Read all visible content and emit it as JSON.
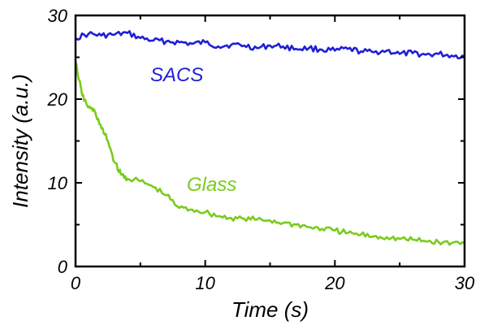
{
  "chart_data": {
    "type": "line",
    "title": "",
    "xlabel": "Time (s)",
    "ylabel": "Intensity (a.u.)",
    "xlim": [
      0,
      30
    ],
    "ylim": [
      0,
      30
    ],
    "xticks": [
      "0",
      "10",
      "20",
      "30"
    ],
    "yticks": [
      "0",
      "10",
      "20",
      "30"
    ],
    "grid": false,
    "series": [
      {
        "name": "SACS",
        "color": "#1f1fd6",
        "x": [
          0,
          1,
          2,
          3,
          4,
          5,
          6,
          7,
          8,
          9,
          10,
          11,
          12,
          13,
          14,
          15,
          16,
          17,
          18,
          19,
          20,
          21,
          22,
          23,
          24,
          25,
          26,
          27,
          28,
          29,
          30
        ],
        "y": [
          27.3,
          27.8,
          27.6,
          27.7,
          27.9,
          27.3,
          27.0,
          26.9,
          26.8,
          26.6,
          26.8,
          26.3,
          26.5,
          26.4,
          26.1,
          26.4,
          26.3,
          26.0,
          26.1,
          25.9,
          25.8,
          26.0,
          25.7,
          25.6,
          25.8,
          25.4,
          25.5,
          25.3,
          25.4,
          25.2,
          25.1
        ]
      },
      {
        "name": "Glass",
        "color": "#7acc1a",
        "x": [
          0,
          0.5,
          1,
          1.5,
          2,
          2.5,
          3,
          3.5,
          4,
          5,
          6,
          7,
          8,
          9,
          10,
          11,
          12,
          13,
          14,
          15,
          16,
          17,
          18,
          19,
          20,
          21,
          22,
          23,
          24,
          25,
          26,
          27,
          28,
          29,
          30
        ],
        "y": [
          24.5,
          20.5,
          19.0,
          18.5,
          16.5,
          15.0,
          12.5,
          11.0,
          10.5,
          10.2,
          9.5,
          8.5,
          7.0,
          6.8,
          6.5,
          6.0,
          5.8,
          5.7,
          5.6,
          5.5,
          5.2,
          5.0,
          4.7,
          4.5,
          4.3,
          4.0,
          3.8,
          3.6,
          3.5,
          3.3,
          3.2,
          3.0,
          2.9,
          2.8,
          2.8
        ]
      }
    ],
    "annotations": [
      "SACS",
      "Glass"
    ]
  }
}
